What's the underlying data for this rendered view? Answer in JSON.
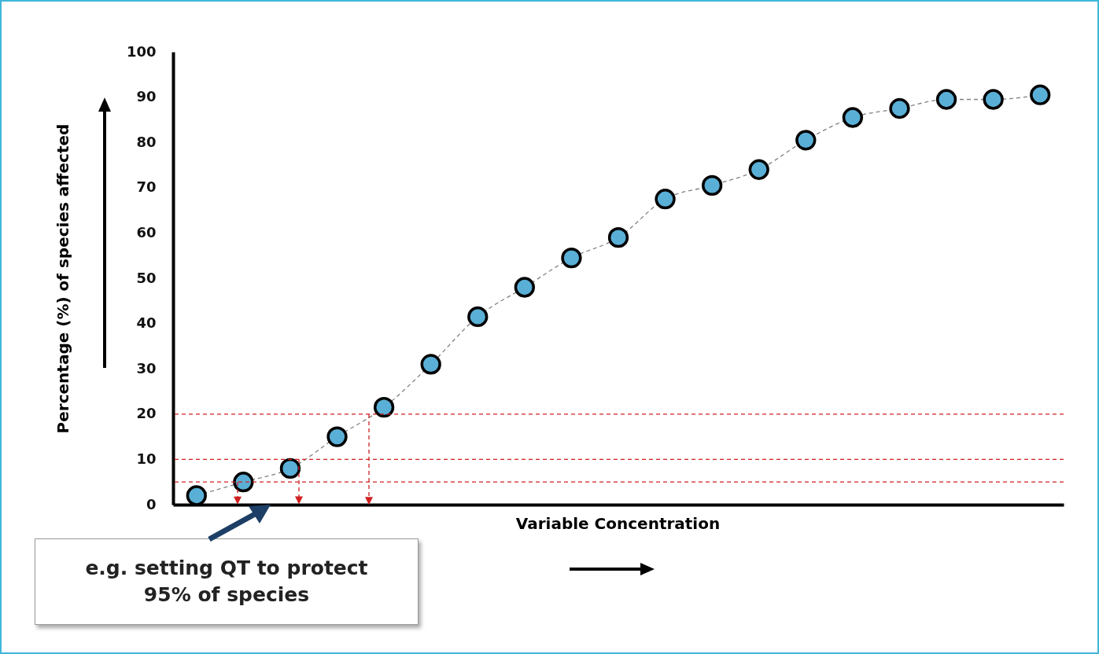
{
  "chart_data": {
    "type": "scatter",
    "xlabel": "Variable Concentration",
    "ylabel": "Percentage (%) of species affected",
    "categories": [
      null,
      null,
      null,
      null,
      null,
      null,
      null,
      null,
      null,
      null,
      null,
      null,
      null,
      null,
      null,
      null,
      null,
      null,
      null
    ],
    "series": [
      {
        "type": "line",
        "color": "#808080",
        "line_style": "dashed",
        "values": [
          2,
          5,
          8,
          15,
          21.5,
          31,
          41.5,
          48,
          54.5,
          59,
          67.5,
          70.5,
          74,
          80.5,
          85.5,
          87.5,
          89.5,
          89.5,
          90.5
        ]
      },
      {
        "type": "scatter",
        "color": "#5aafd6",
        "marker": "circle",
        "values": [
          2,
          5,
          8,
          15,
          21.5,
          31,
          41.5,
          48,
          54.5,
          59,
          67.5,
          70.5,
          74,
          80.5,
          85.5,
          87.5,
          89.5,
          89.5,
          90.5
        ]
      }
    ],
    "ylim": [
      0,
      100
    ],
    "yticks": [
      0,
      10,
      20,
      30,
      40,
      50,
      60,
      70,
      80,
      90,
      100
    ],
    "grid": false,
    "tick_labels": "y",
    "ref_lines": [
      {
        "axis": "y",
        "value": 5,
        "color": "#d02020",
        "line_style": "dashed"
      },
      {
        "axis": "y",
        "value": 10,
        "color": "#d02020",
        "line_style": "dashed"
      },
      {
        "axis": "y",
        "value": 20,
        "color": "#d02020",
        "line_style": "dashed"
      }
    ],
    "annotations": [
      "e.g. setting QT to protect 95% of species"
    ]
  }
}
